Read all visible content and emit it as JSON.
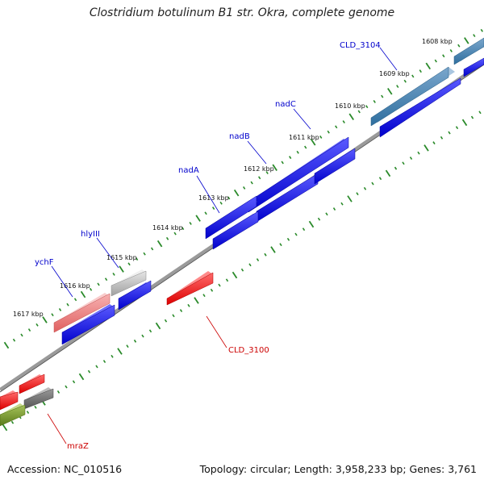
{
  "title": "Clostridium botulinum B1 str. Okra, complete genome",
  "footer": {
    "accession": "Accession: NC_010516",
    "summary": "Topology: circular; Length: 3,958,233 bp; Genes: 3,761"
  },
  "colors": {
    "backbone": "#8a8a8a",
    "tick_green": "#2a8a2a",
    "forward_gene": "#0000ee",
    "reverse_gene": "#ff0000",
    "label_forward": "#0000cc",
    "label_reverse": "#cc0000"
  },
  "ticks": [
    "1608 kbp",
    "1609 kbp",
    "1610 kbp",
    "1611 kbp",
    "1612 kbp",
    "1613 kbp",
    "1614 kbp",
    "1615 kbp",
    "1616 kbp",
    "1617 kbp"
  ],
  "gene_labels": [
    {
      "name": "CLD_3104",
      "strand": "forward"
    },
    {
      "name": "nadC",
      "strand": "forward"
    },
    {
      "name": "nadB",
      "strand": "forward"
    },
    {
      "name": "nadA",
      "strand": "forward"
    },
    {
      "name": "hlyIII",
      "strand": "forward"
    },
    {
      "name": "ychF",
      "strand": "forward"
    },
    {
      "name": "CLD_3100",
      "strand": "reverse"
    },
    {
      "name": "mraZ",
      "strand": "reverse"
    }
  ]
}
